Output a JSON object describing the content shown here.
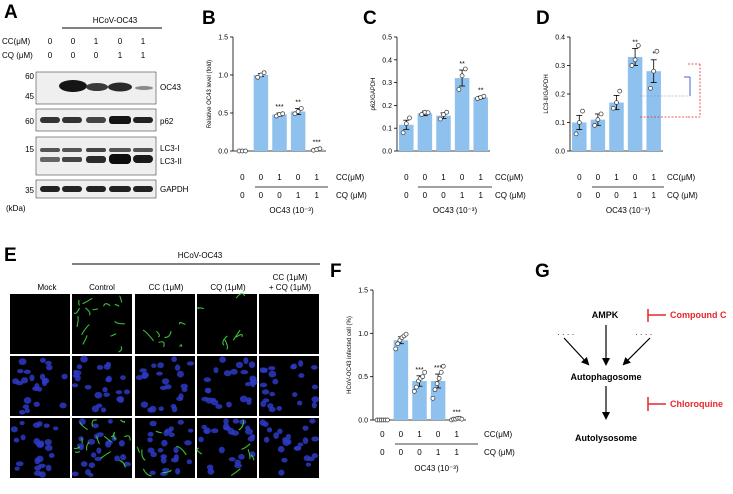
{
  "colors": {
    "bar": "#8fc1ee",
    "bar_stroke": "#5a9fdb",
    "red": "#e8262b",
    "blot_bg": "#e9e9e9",
    "band": "#1c1c1c"
  },
  "panels": {
    "A": {
      "label": "A",
      "group_label": "HCoV-OC43",
      "row_labels": [
        "CC(μM)",
        "CQ (μM)"
      ],
      "cc": [
        "0",
        "0",
        "1",
        "0",
        "1"
      ],
      "cq": [
        "0",
        "0",
        "0",
        "1",
        "1"
      ],
      "mw": [
        "60",
        "45",
        "60",
        "15",
        "35"
      ],
      "kda": "(kDa)",
      "proteins": [
        "OC43",
        "p62",
        "LC3-I",
        "LC3-II",
        "GAPDH"
      ]
    },
    "B": {
      "label": "B"
    },
    "C": {
      "label": "C"
    },
    "D": {
      "label": "D"
    },
    "E": {
      "label": "E",
      "group_label": "HCoV-OC43",
      "columns": [
        "Mock",
        "Control",
        "CC (1μM)",
        "CQ (1μM)",
        "CC (1μM)",
        "+ CQ (1μM)"
      ]
    },
    "F": {
      "label": "F"
    },
    "G": {
      "label": "G",
      "ampk": "AMPK",
      "compound_c": "Compound C",
      "autophagosome": "Autophagosome",
      "chloroquine": "Chloroquine",
      "autolysosome": "Autolysosome",
      "dots": "· · · ·"
    }
  },
  "chart_data": [
    {
      "id": "B",
      "type": "bar",
      "title": "",
      "ylabel": "Relative OC43 level (fold)",
      "xlabel": "OC43 (10⁻³)",
      "ylim": [
        0,
        1.5
      ],
      "yticks": [
        "0.0",
        "0.5",
        "1.0",
        "1.5"
      ],
      "cc": [
        "0",
        "0",
        "1",
        "0",
        "1"
      ],
      "cq": [
        "0",
        "0",
        "0",
        "1",
        "1"
      ],
      "row_labels": [
        "CC(μM)",
        "CQ (μM)"
      ],
      "values": [
        0.0,
        1.0,
        0.48,
        0.52,
        0.02
      ],
      "err": [
        0,
        0.02,
        0.02,
        0.04,
        0.01
      ],
      "points": [
        [
          0,
          0,
          0
        ],
        [
          0.97,
          1.0,
          1.03
        ],
        [
          0.46,
          0.48,
          0.49
        ],
        [
          0.49,
          0.52,
          0.56
        ],
        [
          0.01,
          0.02,
          0.03
        ]
      ],
      "significance": [
        "",
        "",
        "***",
        "**",
        "***"
      ]
    },
    {
      "id": "C",
      "type": "bar",
      "title": "",
      "ylabel": "p62/GAPDH",
      "xlabel": "OC43 (10⁻³)",
      "ylim": [
        0,
        0.5
      ],
      "yticks": [
        "0.0",
        "0.1",
        "0.2",
        "0.3",
        "0.4",
        "0.5"
      ],
      "cc": [
        "0",
        "0",
        "1",
        "0",
        "1"
      ],
      "cq": [
        "0",
        "0",
        "0",
        "1",
        "1"
      ],
      "row_labels": [
        "CC(μM)",
        "CQ (μM)"
      ],
      "values": [
        0.115,
        0.165,
        0.155,
        0.32,
        0.235
      ],
      "err": [
        0.02,
        0.01,
        0.012,
        0.035,
        0.005
      ],
      "points": [
        [
          0.08,
          0.12,
          0.145
        ],
        [
          0.16,
          0.17,
          0.168
        ],
        [
          0.14,
          0.16,
          0.17
        ],
        [
          0.27,
          0.33,
          0.36
        ],
        [
          0.23,
          0.235,
          0.24
        ]
      ],
      "significance": [
        "",
        "",
        "",
        "**",
        "**"
      ]
    },
    {
      "id": "D",
      "type": "bar",
      "title": "",
      "ylabel": "LC3-II/GAPDH",
      "xlabel": "OC43 (10⁻³)",
      "ylim": [
        0,
        0.4
      ],
      "yticks": [
        "0.0",
        "0.1",
        "0.2",
        "0.3",
        "0.4"
      ],
      "cc": [
        "0",
        "0",
        "1",
        "0",
        "1"
      ],
      "cq": [
        "0",
        "0",
        "0",
        "1",
        "1"
      ],
      "row_labels": [
        "CC(μM)",
        "CQ (μM)"
      ],
      "values": [
        0.1,
        0.11,
        0.17,
        0.33,
        0.28
      ],
      "err": [
        0.025,
        0.02,
        0.025,
        0.03,
        0.04
      ],
      "points": [
        [
          0.06,
          0.1,
          0.14
        ],
        [
          0.09,
          0.11,
          0.13
        ],
        [
          0.15,
          0.17,
          0.21
        ],
        [
          0.3,
          0.32,
          0.37
        ],
        [
          0.22,
          0.28,
          0.35
        ]
      ],
      "significance": [
        "",
        "",
        "",
        "**",
        "*"
      ]
    },
    {
      "id": "F",
      "type": "bar",
      "title": "",
      "ylabel": "HCoV-OC43 infected cell (%)",
      "xlabel": "OC43 (10⁻³)",
      "ylim": [
        0,
        1.5
      ],
      "yticks": [
        "0.0",
        "0.5",
        "1.0",
        "1.5"
      ],
      "cc": [
        "0",
        "0",
        "1",
        "0",
        "1"
      ],
      "cq": [
        "0",
        "0",
        "0",
        "1",
        "1"
      ],
      "row_labels": [
        "CC(μM)",
        "CQ (μM)"
      ],
      "values": [
        0.0,
        0.92,
        0.45,
        0.45,
        0.01
      ],
      "err": [
        0,
        0.04,
        0.06,
        0.08,
        0.01
      ],
      "points": [
        [
          0,
          0,
          0,
          0,
          0,
          0
        ],
        [
          0.82,
          0.88,
          0.92,
          0.95,
          0.97,
          0.99
        ],
        [
          0.33,
          0.38,
          0.45,
          0.48,
          0.5,
          0.55
        ],
        [
          0.25,
          0.35,
          0.42,
          0.48,
          0.55,
          0.62
        ],
        [
          0,
          0.01,
          0.01,
          0.02,
          0.02,
          0.01
        ]
      ],
      "significance": [
        "",
        "",
        "***",
        "***",
        "***"
      ]
    }
  ]
}
